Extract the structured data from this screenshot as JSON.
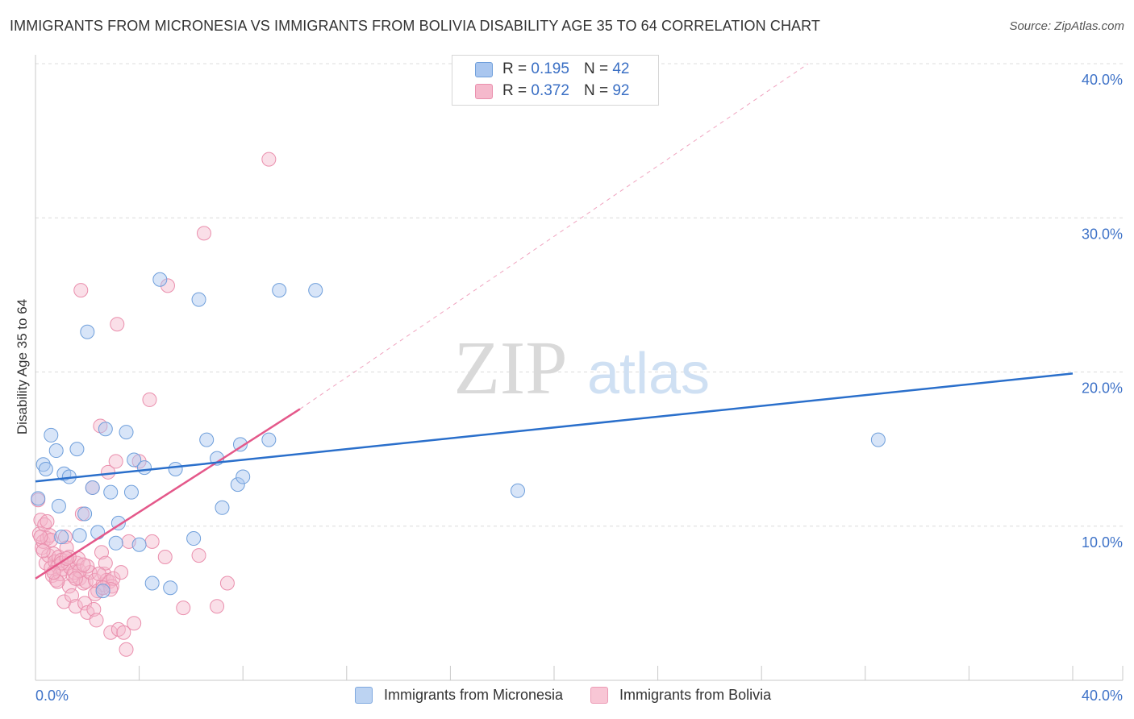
{
  "title": "IMMIGRANTS FROM MICRONESIA VS IMMIGRANTS FROM BOLIVIA DISABILITY AGE 35 TO 64 CORRELATION CHART",
  "source": "Source: ZipAtlas.com",
  "watermark": {
    "zip": "ZIP",
    "atlas": "atlas"
  },
  "legend": {
    "micronesia": {
      "r_label": "R =",
      "r_value": "0.195",
      "n_label": "N =",
      "n_value": "42"
    },
    "bolivia": {
      "r_label": "R =",
      "r_value": "0.372",
      "n_label": "N =",
      "n_value": "92"
    }
  },
  "colors": {
    "blue_fill": "#a9c6ef",
    "blue_stroke": "#6f9fdb",
    "blue_line": "#2a6fcb",
    "pink_fill": "#f5b9cc",
    "pink_stroke": "#ea8fad",
    "pink_line": "#e4588a",
    "tick_text": "#3f73c8",
    "grid": "#dcdcdc"
  },
  "chart_data": {
    "type": "scatter",
    "title": "IMMIGRANTS FROM MICRONESIA VS IMMIGRANTS FROM BOLIVIA DISABILITY AGE 35 TO 64 CORRELATION CHART",
    "xlabel": "",
    "ylabel": "Disability Age 35 to 64",
    "xlim": [
      0,
      40
    ],
    "ylim": [
      0,
      40
    ],
    "x_tick_labels": [
      "0.0%",
      "40.0%"
    ],
    "y_ticks": [
      10,
      20,
      30,
      40
    ],
    "y_tick_labels": [
      "10.0%",
      "20.0%",
      "30.0%",
      "40.0%"
    ],
    "legend_position": "top-center",
    "series": [
      {
        "name": "Immigrants from Micronesia",
        "color": "blue",
        "trend": {
          "x": [
            0,
            40
          ],
          "y": [
            12.9,
            19.9
          ]
        },
        "points": [
          [
            0.1,
            11.8
          ],
          [
            0.3,
            14.0
          ],
          [
            0.4,
            13.7
          ],
          [
            0.6,
            15.9
          ],
          [
            0.8,
            14.9
          ],
          [
            0.9,
            11.3
          ],
          [
            1.0,
            9.3
          ],
          [
            1.1,
            13.4
          ],
          [
            1.3,
            13.2
          ],
          [
            1.6,
            15.0
          ],
          [
            1.7,
            9.4
          ],
          [
            1.9,
            10.8
          ],
          [
            2.0,
            22.6
          ],
          [
            2.2,
            12.5
          ],
          [
            2.4,
            9.6
          ],
          [
            2.6,
            5.8
          ],
          [
            2.7,
            16.3
          ],
          [
            2.9,
            12.2
          ],
          [
            3.1,
            8.9
          ],
          [
            3.2,
            10.2
          ],
          [
            3.5,
            16.1
          ],
          [
            3.7,
            12.2
          ],
          [
            3.8,
            14.3
          ],
          [
            4.0,
            8.8
          ],
          [
            4.2,
            13.8
          ],
          [
            4.5,
            6.3
          ],
          [
            4.8,
            26.0
          ],
          [
            5.2,
            6.0
          ],
          [
            5.4,
            13.7
          ],
          [
            6.1,
            9.2
          ],
          [
            6.3,
            24.7
          ],
          [
            6.6,
            15.6
          ],
          [
            7.0,
            14.4
          ],
          [
            7.2,
            11.2
          ],
          [
            7.8,
            12.7
          ],
          [
            7.9,
            15.3
          ],
          [
            8.0,
            13.2
          ],
          [
            9.0,
            15.6
          ],
          [
            9.4,
            25.3
          ],
          [
            10.8,
            25.3
          ],
          [
            18.6,
            12.3
          ],
          [
            32.5,
            15.6
          ]
        ]
      },
      {
        "name": "Immigrants from Bolivia",
        "color": "pink",
        "trend": {
          "x": [
            0,
            10.2
          ],
          "y": [
            6.6,
            17.6
          ]
        },
        "trend_extension": {
          "x": [
            10.2,
            29.8
          ],
          "y": [
            17.6,
            40.0
          ]
        },
        "points": [
          [
            0.1,
            11.7
          ],
          [
            0.15,
            9.5
          ],
          [
            0.2,
            10.4
          ],
          [
            0.25,
            8.6
          ],
          [
            0.3,
            9.0
          ],
          [
            0.35,
            10.1
          ],
          [
            0.4,
            7.6
          ],
          [
            0.45,
            9.2
          ],
          [
            0.5,
            8.1
          ],
          [
            0.55,
            9.4
          ],
          [
            0.6,
            7.3
          ],
          [
            0.65,
            6.8
          ],
          [
            0.7,
            8.2
          ],
          [
            0.75,
            7.7
          ],
          [
            0.8,
            6.5
          ],
          [
            0.85,
            7.4
          ],
          [
            0.9,
            8.0
          ],
          [
            0.95,
            6.9
          ],
          [
            1.0,
            7.8
          ],
          [
            1.05,
            7.2
          ],
          [
            1.1,
            5.1
          ],
          [
            1.15,
            9.3
          ],
          [
            1.2,
            8.6
          ],
          [
            1.25,
            7.6
          ],
          [
            1.3,
            6.1
          ],
          [
            1.35,
            7.3
          ],
          [
            1.4,
            5.5
          ],
          [
            1.45,
            6.8
          ],
          [
            1.5,
            7.0
          ],
          [
            1.55,
            4.8
          ],
          [
            1.6,
            7.6
          ],
          [
            1.65,
            7.9
          ],
          [
            1.7,
            6.6
          ],
          [
            1.75,
            25.3
          ],
          [
            1.8,
            10.8
          ],
          [
            1.85,
            6.3
          ],
          [
            1.9,
            5.0
          ],
          [
            1.95,
            6.4
          ],
          [
            2.0,
            4.4
          ],
          [
            2.1,
            7.0
          ],
          [
            2.2,
            12.5
          ],
          [
            2.25,
            4.6
          ],
          [
            2.3,
            6.5
          ],
          [
            2.35,
            3.9
          ],
          [
            2.4,
            5.8
          ],
          [
            2.5,
            16.5
          ],
          [
            2.55,
            8.3
          ],
          [
            2.6,
            6.2
          ],
          [
            2.65,
            6.9
          ],
          [
            2.7,
            7.6
          ],
          [
            2.75,
            6.5
          ],
          [
            2.8,
            13.5
          ],
          [
            2.85,
            6.4
          ],
          [
            2.9,
            3.1
          ],
          [
            2.95,
            6.1
          ],
          [
            3.0,
            6.6
          ],
          [
            3.1,
            14.2
          ],
          [
            3.15,
            23.1
          ],
          [
            3.2,
            3.3
          ],
          [
            3.3,
            7.0
          ],
          [
            3.5,
            2.0
          ],
          [
            3.6,
            9.0
          ],
          [
            3.8,
            3.7
          ],
          [
            4.0,
            14.2
          ],
          [
            4.4,
            18.2
          ],
          [
            4.5,
            9.0
          ],
          [
            5.0,
            8.0
          ],
          [
            5.1,
            25.6
          ],
          [
            5.7,
            4.7
          ],
          [
            6.3,
            8.1
          ],
          [
            6.5,
            29.0
          ],
          [
            7.0,
            4.8
          ],
          [
            7.4,
            6.3
          ],
          [
            9.0,
            33.8
          ],
          [
            0.3,
            8.4
          ],
          [
            0.6,
            9.1
          ],
          [
            1.0,
            7.6
          ],
          [
            1.3,
            8.0
          ],
          [
            1.7,
            7.1
          ],
          [
            2.0,
            7.4
          ],
          [
            2.3,
            5.6
          ],
          [
            0.45,
            10.3
          ],
          [
            0.85,
            6.4
          ],
          [
            1.55,
            6.6
          ],
          [
            2.45,
            6.9
          ],
          [
            2.9,
            5.9
          ],
          [
            3.4,
            3.1
          ],
          [
            0.2,
            9.3
          ],
          [
            1.2,
            7.9
          ],
          [
            1.85,
            7.5
          ],
          [
            2.6,
            6.0
          ],
          [
            0.7,
            7.0
          ]
        ]
      }
    ]
  },
  "bottom_legend": {
    "micronesia": "Immigrants from Micronesia",
    "bolivia": "Immigrants from Bolivia"
  }
}
